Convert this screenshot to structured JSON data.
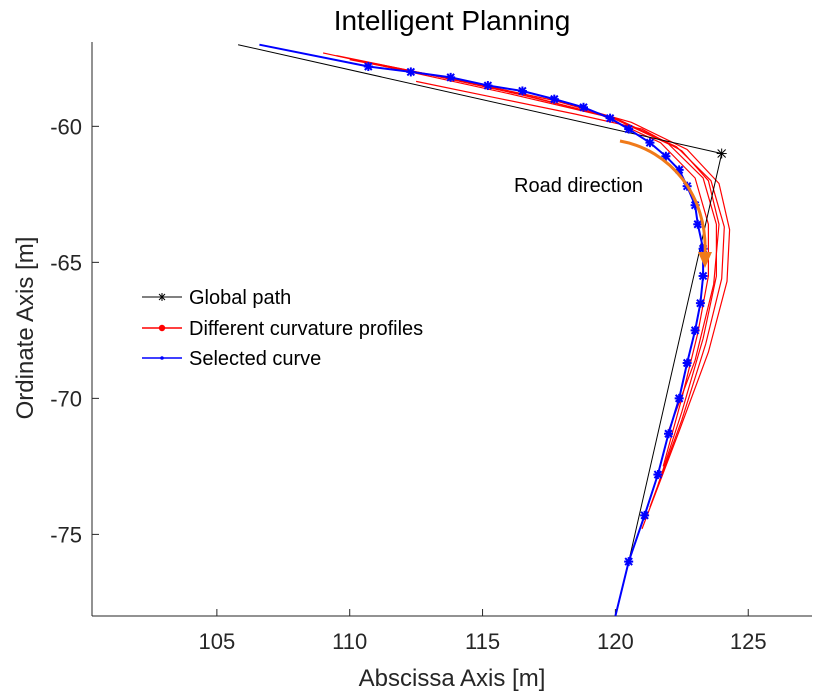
{
  "chart_data": {
    "type": "line",
    "title": "Intelligent Planning",
    "xlabel": "Abscissa Axis [m]",
    "ylabel": "Ordinate Axis [m]",
    "xlim": [
      100.3,
      127.4
    ],
    "ylim": [
      -78.0,
      -56.9
    ],
    "xticks": [
      105,
      110,
      115,
      120,
      125
    ],
    "yticks": [
      -60,
      -65,
      -70,
      -75
    ],
    "grid": false,
    "legend_position": "middle-left",
    "colors": {
      "global_path": "#000000",
      "curvature_profiles": "#ff0000",
      "selected_curve": "#0000ff",
      "markers": "#0000ff",
      "annotation_arrow": "#f07a1a"
    },
    "legend": [
      {
        "key": "global",
        "label": "Global path"
      },
      {
        "key": "profiles",
        "label": "Different curvature profiles"
      },
      {
        "key": "selected",
        "label": "Selected curve"
      }
    ],
    "annotation": {
      "text": "Road direction",
      "position": "middle-right",
      "arrow": "curved-down"
    },
    "series": {
      "global_path": [
        [
          105.8,
          -57.0
        ],
        [
          124.0,
          -61.0
        ],
        [
          120.5,
          -76.0
        ]
      ],
      "selected_curve": [
        [
          106.6,
          -57.0
        ],
        [
          110.7,
          -57.8
        ],
        [
          112.3,
          -58.0
        ],
        [
          113.8,
          -58.2
        ],
        [
          115.2,
          -58.5
        ],
        [
          116.5,
          -58.7
        ],
        [
          117.7,
          -59.0
        ],
        [
          118.8,
          -59.3
        ],
        [
          119.8,
          -59.7
        ],
        [
          120.5,
          -60.1
        ],
        [
          121.3,
          -60.6
        ],
        [
          121.9,
          -61.1
        ],
        [
          122.4,
          -61.6
        ],
        [
          122.7,
          -62.2
        ],
        [
          123.0,
          -62.9
        ],
        [
          123.1,
          -63.6
        ],
        [
          123.3,
          -64.5
        ],
        [
          123.3,
          -65.5
        ],
        [
          123.2,
          -66.5
        ],
        [
          123.0,
          -67.5
        ],
        [
          122.7,
          -68.7
        ],
        [
          122.4,
          -70.0
        ],
        [
          122.0,
          -71.3
        ],
        [
          121.6,
          -72.8
        ],
        [
          121.1,
          -74.3
        ],
        [
          120.5,
          -76.0
        ],
        [
          120.0,
          -78.0
        ]
      ],
      "markers": [
        [
          110.7,
          -57.8
        ],
        [
          112.3,
          -58.0
        ],
        [
          113.8,
          -58.2
        ],
        [
          115.2,
          -58.5
        ],
        [
          116.5,
          -58.7
        ],
        [
          117.7,
          -59.0
        ],
        [
          118.8,
          -59.3
        ],
        [
          119.8,
          -59.7
        ],
        [
          120.5,
          -60.1
        ],
        [
          121.3,
          -60.6
        ],
        [
          121.9,
          -61.1
        ],
        [
          122.4,
          -61.6
        ],
        [
          122.7,
          -62.2
        ],
        [
          123.0,
          -62.9
        ],
        [
          123.1,
          -63.6
        ],
        [
          123.3,
          -64.5
        ],
        [
          123.3,
          -65.5
        ],
        [
          123.2,
          -66.5
        ],
        [
          123.0,
          -67.5
        ],
        [
          122.7,
          -68.7
        ],
        [
          122.4,
          -70.0
        ],
        [
          122.0,
          -71.3
        ],
        [
          121.6,
          -72.8
        ],
        [
          121.1,
          -74.3
        ],
        [
          120.5,
          -76.0
        ]
      ],
      "curvature_profiles": [
        [
          [
            109.0,
            -57.3
          ],
          [
            112.5,
            -58.05
          ],
          [
            116.0,
            -58.8
          ],
          [
            119.5,
            -59.6
          ],
          [
            121.7,
            -60.6
          ],
          [
            123.0,
            -61.9
          ],
          [
            123.5,
            -63.6
          ],
          [
            123.5,
            -65.5
          ],
          [
            123.1,
            -67.6
          ],
          [
            122.5,
            -70.0
          ],
          [
            121.8,
            -72.5
          ]
        ],
        [
          [
            109.5,
            -57.4
          ],
          [
            113.0,
            -58.1
          ],
          [
            116.5,
            -58.85
          ],
          [
            119.8,
            -59.65
          ],
          [
            122.0,
            -60.65
          ],
          [
            123.3,
            -61.9
          ],
          [
            123.8,
            -63.6
          ],
          [
            123.8,
            -65.5
          ],
          [
            123.3,
            -67.8
          ],
          [
            122.5,
            -70.5
          ],
          [
            121.6,
            -73.2
          ]
        ],
        [
          [
            110.0,
            -57.55
          ],
          [
            113.5,
            -58.2
          ],
          [
            117.0,
            -58.95
          ],
          [
            120.1,
            -59.75
          ],
          [
            122.3,
            -60.75
          ],
          [
            123.6,
            -62.0
          ],
          [
            124.1,
            -63.7
          ],
          [
            124.0,
            -65.6
          ],
          [
            123.4,
            -68.0
          ],
          [
            122.5,
            -70.8
          ],
          [
            121.3,
            -74.0
          ]
        ],
        [
          [
            111.0,
            -57.7
          ],
          [
            114.3,
            -58.35
          ],
          [
            117.7,
            -59.05
          ],
          [
            120.6,
            -59.85
          ],
          [
            122.7,
            -60.85
          ],
          [
            123.9,
            -62.1
          ],
          [
            124.3,
            -63.8
          ],
          [
            124.2,
            -65.7
          ],
          [
            123.5,
            -68.3
          ],
          [
            122.4,
            -71.2
          ],
          [
            121.0,
            -74.8
          ]
        ],
        [
          [
            112.5,
            -58.35
          ],
          [
            115.5,
            -58.95
          ],
          [
            118.5,
            -59.55
          ],
          [
            121.0,
            -60.1
          ],
          [
            122.5,
            -60.9
          ],
          [
            123.5,
            -62.0
          ],
          [
            123.9,
            -63.6
          ],
          [
            123.7,
            -65.8
          ],
          [
            123.0,
            -68.6
          ],
          [
            122.0,
            -71.2
          ]
        ]
      ]
    }
  }
}
